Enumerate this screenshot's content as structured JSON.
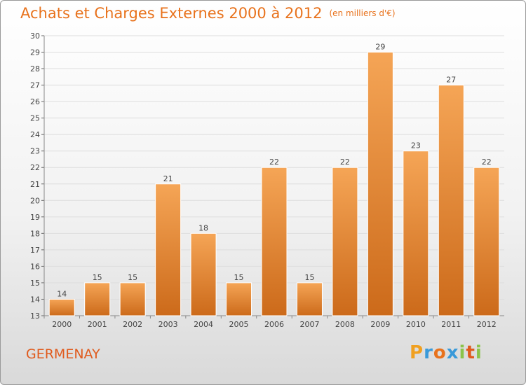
{
  "header": {
    "title": "Achats et Charges Externes 2000 à 2012",
    "unit": "(en milliers d'€)"
  },
  "footer": {
    "commune": "GERMENAY",
    "logo_letters": [
      "P",
      "r",
      "o",
      "x",
      "i",
      "t",
      "i"
    ],
    "logo_colors": [
      "#f0a020",
      "#3a9ad9",
      "#e8721c",
      "#3a9ad9",
      "#8bc34a",
      "#e05a1c",
      "#8bc34a"
    ]
  },
  "colors": {
    "bar_top": "#f5a556",
    "bar_bottom": "#cc6a1a",
    "bar_edge": "#ffffff",
    "title": "#e8721c"
  },
  "chart_data": {
    "type": "bar",
    "title": "Achats et Charges Externes 2000 à 2012",
    "subtitle": "(en milliers d'€)",
    "categories": [
      "2000",
      "2001",
      "2002",
      "2003",
      "2004",
      "2005",
      "2006",
      "2007",
      "2008",
      "2009",
      "2010",
      "2011",
      "2012"
    ],
    "values": [
      14,
      15,
      15,
      21,
      18,
      15,
      22,
      15,
      22,
      29,
      23,
      27,
      22
    ],
    "ylim": [
      13,
      30
    ],
    "yticks": [
      13,
      14,
      15,
      16,
      17,
      18,
      19,
      20,
      21,
      22,
      23,
      24,
      25,
      26,
      27,
      28,
      29,
      30
    ],
    "grid": true,
    "legend": "none"
  }
}
